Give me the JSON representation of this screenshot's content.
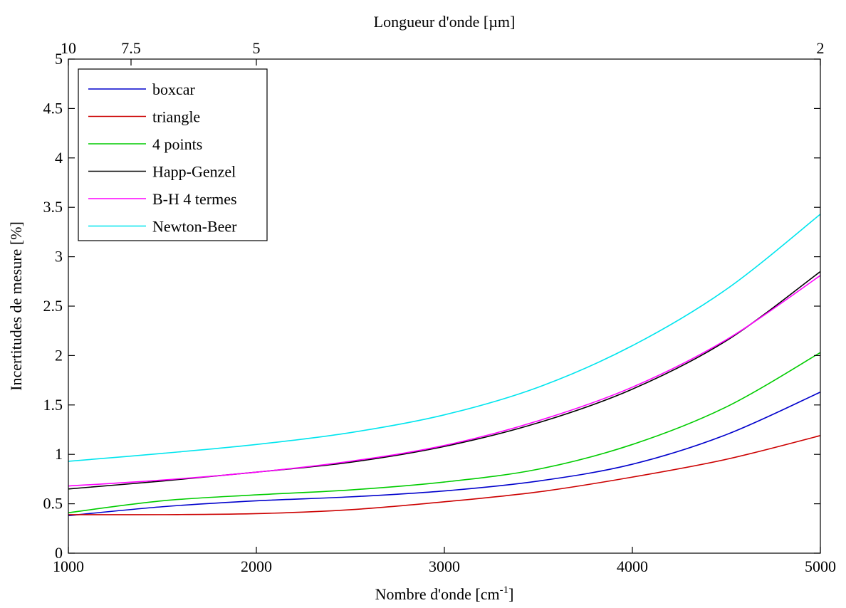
{
  "chart_data": {
    "type": "line",
    "xlabel": "Nombre d'onde [cm",
    "xlabel_sup": "-1",
    "xlabel_end": "]",
    "ylabel": "Incertitudes de mesure [%]",
    "top_xlabel": "Longueur d'onde [µm]",
    "xlim": [
      1000,
      5000
    ],
    "ylim": [
      0,
      5
    ],
    "x_ticks": [
      1000,
      2000,
      3000,
      4000,
      5000
    ],
    "x_tick_labels": [
      "1000",
      "2000",
      "3000",
      "4000",
      "5000"
    ],
    "y_ticks": [
      0,
      0.5,
      1,
      1.5,
      2,
      2.5,
      3,
      3.5,
      4,
      4.5,
      5
    ],
    "y_tick_labels": [
      "0",
      "0.5",
      "1",
      "1.5",
      "2",
      "2.5",
      "3",
      "3.5",
      "4",
      "4.5",
      "5"
    ],
    "top_ticks": [
      {
        "wavenumber": 1000,
        "label": "10"
      },
      {
        "wavenumber": 1333.33,
        "label": "7.5"
      },
      {
        "wavenumber": 2000,
        "label": "5"
      },
      {
        "wavenumber": 5000,
        "label": "2"
      }
    ],
    "grid": false,
    "legend_position": "top-left",
    "x": [
      1000,
      1500,
      2000,
      2500,
      3000,
      3500,
      4000,
      4500,
      5000
    ],
    "series": [
      {
        "name": "boxcar",
        "color": "#0000cc",
        "values": [
          0.38,
          0.47,
          0.53,
          0.57,
          0.63,
          0.73,
          0.9,
          1.2,
          1.63
        ]
      },
      {
        "name": "triangle",
        "color": "#cc0000",
        "values": [
          0.39,
          0.39,
          0.4,
          0.44,
          0.52,
          0.62,
          0.77,
          0.95,
          1.19
        ]
      },
      {
        "name": "4 points",
        "color": "#00cc00",
        "values": [
          0.41,
          0.53,
          0.59,
          0.64,
          0.72,
          0.85,
          1.1,
          1.48,
          2.03
        ]
      },
      {
        "name": "Happ-Genzel",
        "color": "#000000",
        "values": [
          0.65,
          0.73,
          0.82,
          0.92,
          1.08,
          1.32,
          1.66,
          2.15,
          2.85
        ]
      },
      {
        "name": "B-H 4 termes",
        "color": "#ff00ff",
        "values": [
          0.68,
          0.74,
          0.82,
          0.93,
          1.09,
          1.34,
          1.68,
          2.16,
          2.81
        ]
      },
      {
        "name": "Newton-Beer",
        "color": "#00e5ee",
        "values": [
          0.93,
          1.01,
          1.1,
          1.22,
          1.4,
          1.68,
          2.1,
          2.67,
          3.43
        ]
      }
    ]
  }
}
